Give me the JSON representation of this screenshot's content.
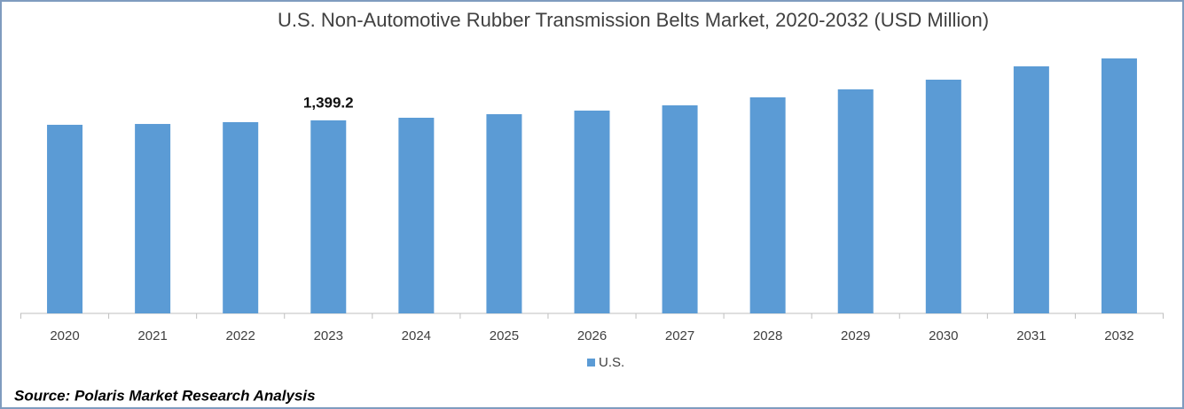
{
  "chart_data": {
    "type": "bar",
    "title": "U.S. Non-Automotive Rubber Transmission Belts Market, 2020-2032 (USD Million)",
    "categories": [
      "2020",
      "2021",
      "2022",
      "2023",
      "2024",
      "2025",
      "2026",
      "2027",
      "2028",
      "2029",
      "2030",
      "2031",
      "2032"
    ],
    "series": [
      {
        "name": "U.S.",
        "color": "#5b9bd5",
        "values": [
          1367,
          1373,
          1386,
          1399.2,
          1418,
          1444,
          1470,
          1508,
          1566,
          1624,
          1694,
          1791,
          1848
        ],
        "value_labels": [
          null,
          null,
          null,
          "1,399.2",
          null,
          null,
          null,
          null,
          null,
          null,
          null,
          null,
          null
        ]
      }
    ],
    "source": "Source: Polaris Market Research Analysis"
  }
}
